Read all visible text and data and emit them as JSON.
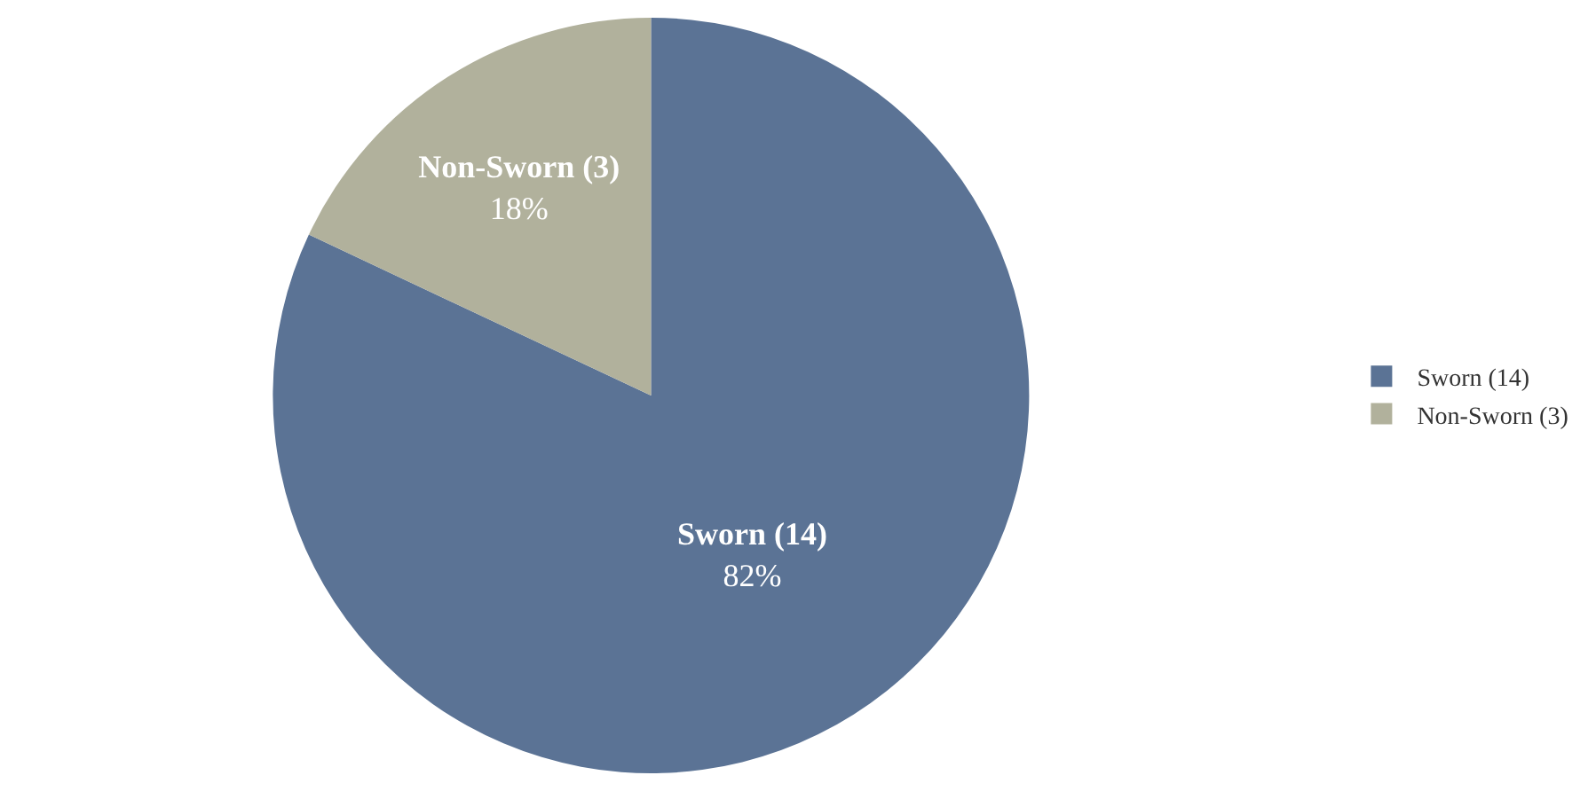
{
  "chart_data": {
    "type": "pie",
    "categories": [
      "Sworn (14)",
      "Non-Sworn (3)"
    ],
    "values": [
      82,
      18
    ],
    "value_labels": [
      "82%",
      "18%"
    ],
    "colors": [
      "#5b7395",
      "#b1b19c"
    ],
    "legend": "right"
  }
}
